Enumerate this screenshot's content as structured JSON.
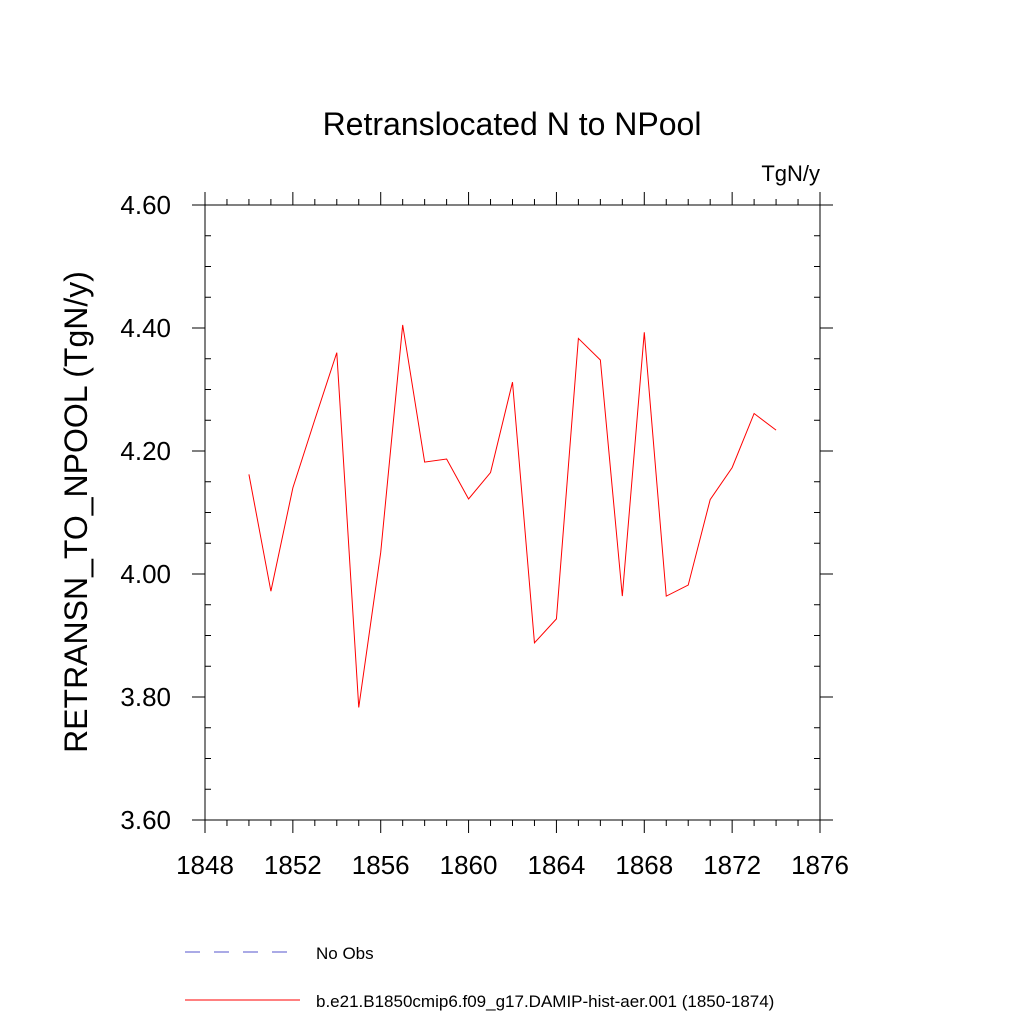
{
  "chart_data": {
    "type": "line",
    "title": "Retranslocated N to NPool",
    "units": "TgN/y",
    "ylabel": "RETRANSN_TO_NPOOL  (TgN/y)",
    "xlabel": "",
    "xlim": [
      1848,
      1876
    ],
    "ylim": [
      3.6,
      4.6
    ],
    "x_ticks": [
      1848,
      1852,
      1856,
      1860,
      1864,
      1868,
      1872,
      1876
    ],
    "y_ticks": [
      "3.60",
      "3.80",
      "4.00",
      "4.20",
      "4.40",
      "4.60"
    ],
    "grid": false,
    "legend_position": "bottom",
    "series": [
      {
        "name": "No Obs",
        "color": "#5555cc",
        "dash": "dashed",
        "x": [],
        "y": []
      },
      {
        "name": "b.e21.B1850cmip6.f09_g17.DAMIP-hist-aer.001 (1850-1874)",
        "color": "#ff0000",
        "dash": "solid",
        "x": [
          1850,
          1851,
          1852,
          1853,
          1854,
          1855,
          1856,
          1857,
          1858,
          1859,
          1860,
          1861,
          1862,
          1863,
          1864,
          1865,
          1866,
          1867,
          1868,
          1869,
          1870,
          1871,
          1872,
          1873,
          1874
        ],
        "y": [
          4.162,
          3.972,
          4.14,
          4.251,
          4.36,
          3.783,
          4.035,
          4.405,
          4.182,
          4.187,
          4.122,
          4.165,
          4.312,
          3.888,
          3.927,
          4.383,
          4.348,
          3.964,
          4.393,
          3.964,
          3.982,
          4.121,
          4.173,
          4.261,
          4.234
        ]
      }
    ]
  }
}
